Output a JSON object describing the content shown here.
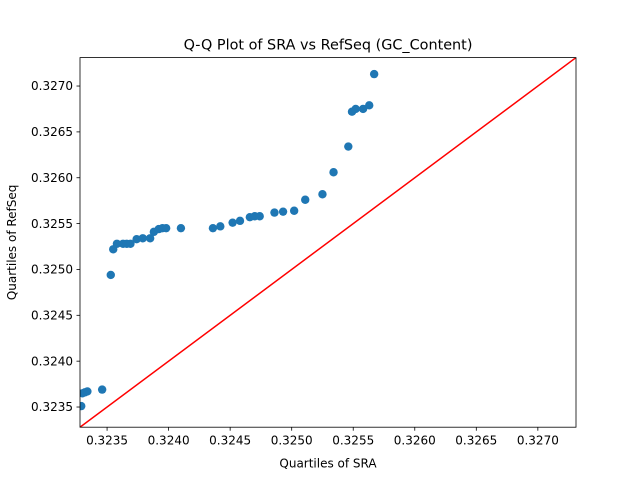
{
  "chart_data": {
    "type": "scatter",
    "title": "Q-Q Plot of SRA vs RefSeq (GC_Content)",
    "xlabel": "Quartiles of SRA",
    "ylabel": "Quartiles of RefSeq",
    "xlim": [
      0.32328,
      0.32731
    ],
    "ylim": [
      0.32328,
      0.32731
    ],
    "xticks": [
      0.3235,
      0.324,
      0.3245,
      0.325,
      0.3255,
      0.326,
      0.3265,
      0.327
    ],
    "xtick_labels": [
      "0.3235",
      "0.3240",
      "0.3245",
      "0.3250",
      "0.3255",
      "0.3260",
      "0.3265",
      "0.3270"
    ],
    "yticks": [
      0.3235,
      0.324,
      0.3245,
      0.325,
      0.3255,
      0.326,
      0.3265,
      0.327
    ],
    "ytick_labels": [
      "0.3235",
      "0.3240",
      "0.3245",
      "0.3250",
      "0.3255",
      "0.3260",
      "0.3265",
      "0.3270"
    ],
    "grid": false,
    "colors": {
      "points": "#1f77b4",
      "reference_line": "#ff0000"
    },
    "reference_line": {
      "type": "y=x"
    },
    "series": [
      {
        "x": [
          0.32329,
          0.3233,
          0.32332,
          0.32334,
          0.32346,
          0.32353,
          0.32355,
          0.32358,
          0.32363,
          0.32366,
          0.32369,
          0.32374,
          0.32379,
          0.32385,
          0.32388,
          0.32392,
          0.32395,
          0.32398,
          0.3241,
          0.32436,
          0.32442,
          0.32452,
          0.32458,
          0.32466,
          0.3247,
          0.32474,
          0.32486,
          0.32493,
          0.32502,
          0.32511,
          0.32525,
          0.32534,
          0.32546,
          0.32549,
          0.32552,
          0.32558,
          0.32563,
          0.32567
        ],
        "y": [
          0.32351,
          0.32365,
          0.32366,
          0.32367,
          0.32369,
          0.32494,
          0.32522,
          0.32528,
          0.32528,
          0.32528,
          0.32528,
          0.32533,
          0.32534,
          0.32534,
          0.32541,
          0.32544,
          0.32545,
          0.32545,
          0.32545,
          0.32545,
          0.32547,
          0.32551,
          0.32553,
          0.32557,
          0.32558,
          0.32558,
          0.32562,
          0.32563,
          0.32564,
          0.32576,
          0.32582,
          0.32606,
          0.32634,
          0.32672,
          0.32675,
          0.32675,
          0.32679,
          0.32713
        ]
      }
    ]
  }
}
